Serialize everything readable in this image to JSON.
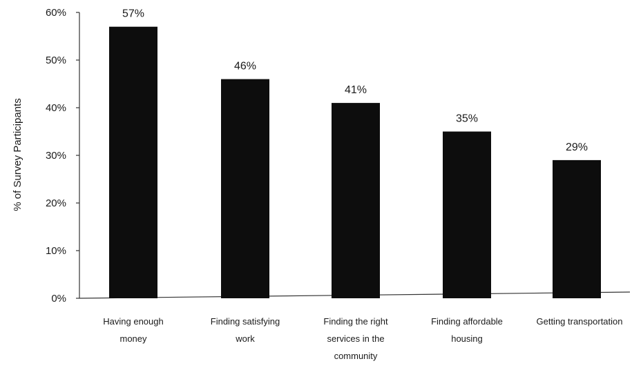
{
  "chart_data": {
    "type": "bar",
    "title": "",
    "xlabel": "",
    "ylabel": "% of Survey Participants",
    "ylim": [
      0,
      60
    ],
    "y_ticks": [
      "0%",
      "10%",
      "20%",
      "30%",
      "40%",
      "50%",
      "60%"
    ],
    "categories": [
      [
        "Having enough",
        "money"
      ],
      [
        "Finding satisfying",
        "work"
      ],
      [
        "Finding the right",
        "services in the",
        "community"
      ],
      [
        "Finding affordable",
        "housing"
      ],
      [
        "Getting transportation"
      ]
    ],
    "values": [
      57,
      46,
      41,
      35,
      29
    ],
    "data_labels": [
      "57%",
      "46%",
      "41%",
      "35%",
      "29%"
    ],
    "grid": false,
    "colors": {
      "bar": "#0d0d0d",
      "axis": "#333333"
    }
  }
}
